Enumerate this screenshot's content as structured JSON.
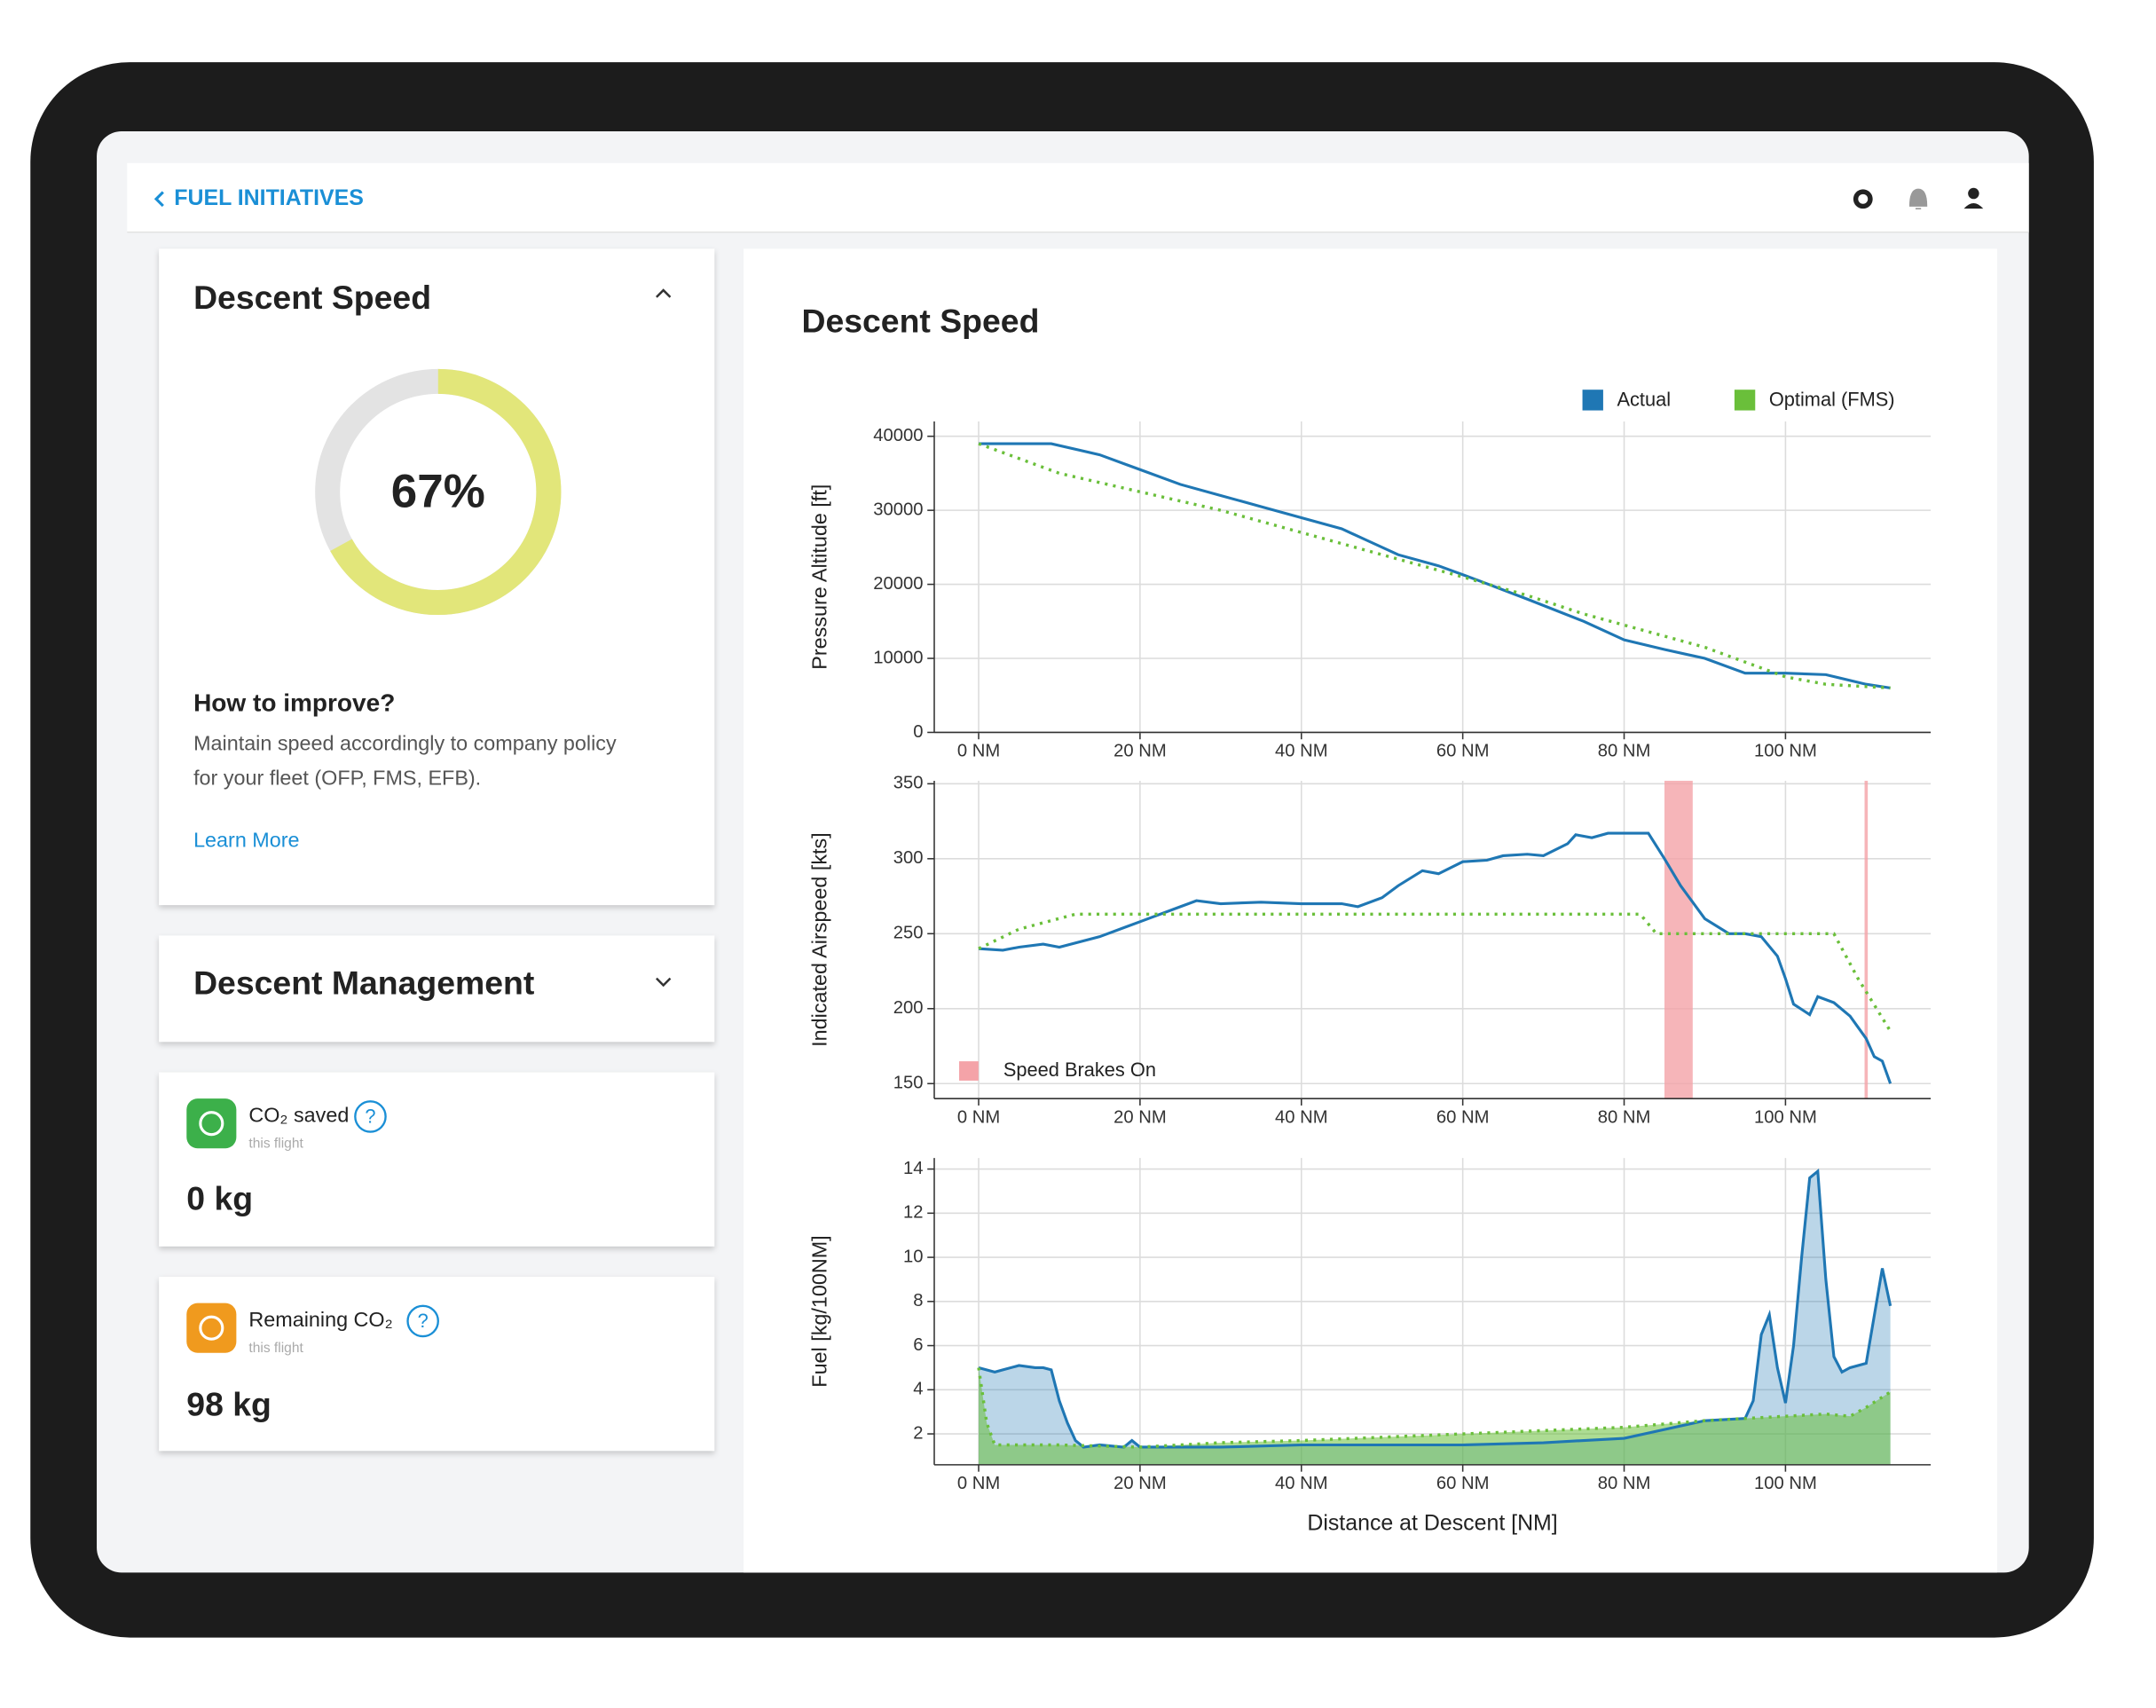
{
  "header": {
    "back_link": "FUEL INITIATIVES"
  },
  "descent_speed_card": {
    "title": "Descent Speed",
    "gauge": {
      "value": 67,
      "value_label": "67%",
      "color": "#e2e67a"
    },
    "improve_title": "How to improve?",
    "improve_text": [
      "Maintain speed accordingly to company policy",
      "for your fleet (OFP, FMS, EFB)."
    ],
    "link": "Learn More"
  },
  "descent_management_card": {
    "title": "Descent Management"
  },
  "co2_saved": {
    "label": "CO₂ saved",
    "help": "?",
    "sublabel": "this flight",
    "value": "0 kg"
  },
  "remaining_co2": {
    "label": "Remaining CO₂",
    "help": "?",
    "sublabel": "this flight",
    "value": "98 kg"
  },
  "panel_title": "Descent Speed",
  "chart_data": [
    {
      "type": "line",
      "ylabel": "Pressure Altitude [ft]",
      "legend": "top-right",
      "grid": true,
      "xlim": [
        -5.5,
        118
      ],
      "ylim": [
        0,
        42000
      ],
      "xticks": [
        {
          "value": 0,
          "label": "0 NM"
        },
        {
          "value": 20,
          "label": "20 NM"
        },
        {
          "value": 40,
          "label": "40 NM"
        },
        {
          "value": 60,
          "label": "60 NM"
        },
        {
          "value": 80,
          "label": "80 NM"
        },
        {
          "value": 100,
          "label": "100 NM"
        }
      ],
      "yticks": [
        0,
        10000,
        20000,
        30000,
        40000
      ],
      "series": [
        {
          "name": "Actual",
          "color": "#1f77b4",
          "x": [
            0,
            5,
            9,
            15,
            20,
            25,
            30,
            35,
            40,
            45,
            48,
            52,
            57,
            62,
            68,
            75,
            80,
            85,
            90,
            95,
            100,
            105,
            110,
            113
          ],
          "values": [
            39000,
            39000,
            39000,
            37500,
            35500,
            33500,
            32000,
            30500,
            29000,
            27500,
            26000,
            24000,
            22500,
            20500,
            18000,
            15000,
            12500,
            11200,
            10000,
            8000,
            8000,
            7800,
            6500,
            6000
          ]
        },
        {
          "name": "Optimal (FMS)",
          "color": "#6abf3a",
          "dash": true,
          "x": [
            0,
            10,
            20,
            30,
            40,
            50,
            60,
            68,
            75,
            85,
            90,
            95,
            100,
            105,
            113
          ],
          "values": [
            39000,
            35000,
            32500,
            30000,
            27000,
            24000,
            21000,
            18500,
            16000,
            13000,
            11500,
            9500,
            7500,
            6500,
            6000
          ]
        }
      ]
    },
    {
      "type": "line",
      "ylabel": "Indicated Airspeed [kts]",
      "grid": true,
      "xlim": [
        -5.5,
        118
      ],
      "ylim": [
        140,
        352
      ],
      "xticks": [
        {
          "value": 0,
          "label": "0 NM"
        },
        {
          "value": 20,
          "label": "20 NM"
        },
        {
          "value": 40,
          "label": "40 NM"
        },
        {
          "value": 60,
          "label": "60 NM"
        },
        {
          "value": 80,
          "label": "80 NM"
        },
        {
          "value": 100,
          "label": "100 NM"
        }
      ],
      "yticks": [
        150,
        200,
        250,
        300,
        350
      ],
      "spans": {
        "name": "Speed Brakes On",
        "color": "#f4a3a8",
        "ranges": [
          [
            85,
            88.5
          ],
          [
            109.8,
            110.2
          ]
        ]
      },
      "series": [
        {
          "color": "#1f77b4",
          "x": [
            0,
            3,
            5,
            8,
            10,
            15,
            20,
            25,
            27,
            30,
            35,
            40,
            45,
            47,
            50,
            52,
            55,
            57,
            60,
            63,
            65,
            68,
            70,
            73,
            74,
            76,
            78,
            80,
            83,
            85,
            87,
            90,
            93,
            95,
            97,
            99,
            100,
            101,
            103,
            104,
            106,
            108,
            110,
            111,
            112,
            113
          ],
          "values": [
            240,
            239,
            241,
            243,
            241,
            248,
            258,
            268,
            272,
            270,
            271,
            270,
            270,
            268,
            274,
            282,
            292,
            290,
            298,
            299,
            302,
            303,
            302,
            310,
            316,
            314,
            317,
            317,
            317,
            300,
            282,
            260,
            250,
            250,
            248,
            235,
            220,
            203,
            196,
            208,
            204,
            195,
            180,
            168,
            165,
            150
          ]
        },
        {
          "color": "#6abf3a",
          "dash": true,
          "x": [
            0,
            5,
            12,
            20,
            40,
            60,
            82,
            84,
            100,
            106,
            109,
            113
          ],
          "values": [
            240,
            253,
            263,
            263,
            263,
            263,
            263,
            250,
            250,
            250,
            220,
            185
          ]
        }
      ]
    },
    {
      "type": "line",
      "ylabel": "Fuel [kg/100NM]",
      "xlabel": "Distance at Descent [NM]",
      "grid": true,
      "area": true,
      "xlim": [
        -5.5,
        118
      ],
      "ylim": [
        0.6,
        14.5
      ],
      "xticks": [
        {
          "value": 0,
          "label": "0 NM"
        },
        {
          "value": 20,
          "label": "20 NM"
        },
        {
          "value": 40,
          "label": "40 NM"
        },
        {
          "value": 60,
          "label": "60 NM"
        },
        {
          "value": 80,
          "label": "80 NM"
        },
        {
          "value": 100,
          "label": "100 NM"
        }
      ],
      "yticks": [
        2,
        4,
        6,
        8,
        10,
        12,
        14
      ],
      "series": [
        {
          "color": "#1f77b4",
          "x": [
            0,
            2,
            3,
            5,
            7,
            8,
            9,
            10,
            11,
            12,
            13,
            15,
            18,
            19,
            20,
            30,
            40,
            60,
            70,
            80,
            85,
            90,
            95,
            96,
            97,
            98,
            99,
            100,
            101,
            102,
            103,
            104,
            105,
            106,
            107,
            108,
            110,
            112,
            113
          ],
          "values": [
            5,
            4.8,
            4.9,
            5.1,
            5,
            5,
            4.9,
            3.5,
            2.5,
            1.7,
            1.4,
            1.5,
            1.4,
            1.7,
            1.4,
            1.4,
            1.5,
            1.5,
            1.6,
            1.8,
            2.2,
            2.6,
            2.7,
            3.5,
            6.5,
            7.4,
            5,
            3.4,
            6,
            10,
            13.6,
            13.9,
            9,
            5.5,
            4.8,
            5,
            5.2,
            9.5,
            7.8
          ]
        },
        {
          "color": "#6abf3a",
          "dash": true,
          "x": [
            0,
            1,
            2,
            10,
            20,
            30,
            40,
            60,
            80,
            90,
            100,
            105,
            108,
            110,
            113
          ],
          "values": [
            5,
            2.5,
            1.5,
            1.5,
            1.4,
            1.6,
            1.7,
            2,
            2.3,
            2.6,
            2.8,
            2.9,
            2.8,
            3.2,
            3.9
          ]
        }
      ]
    }
  ]
}
